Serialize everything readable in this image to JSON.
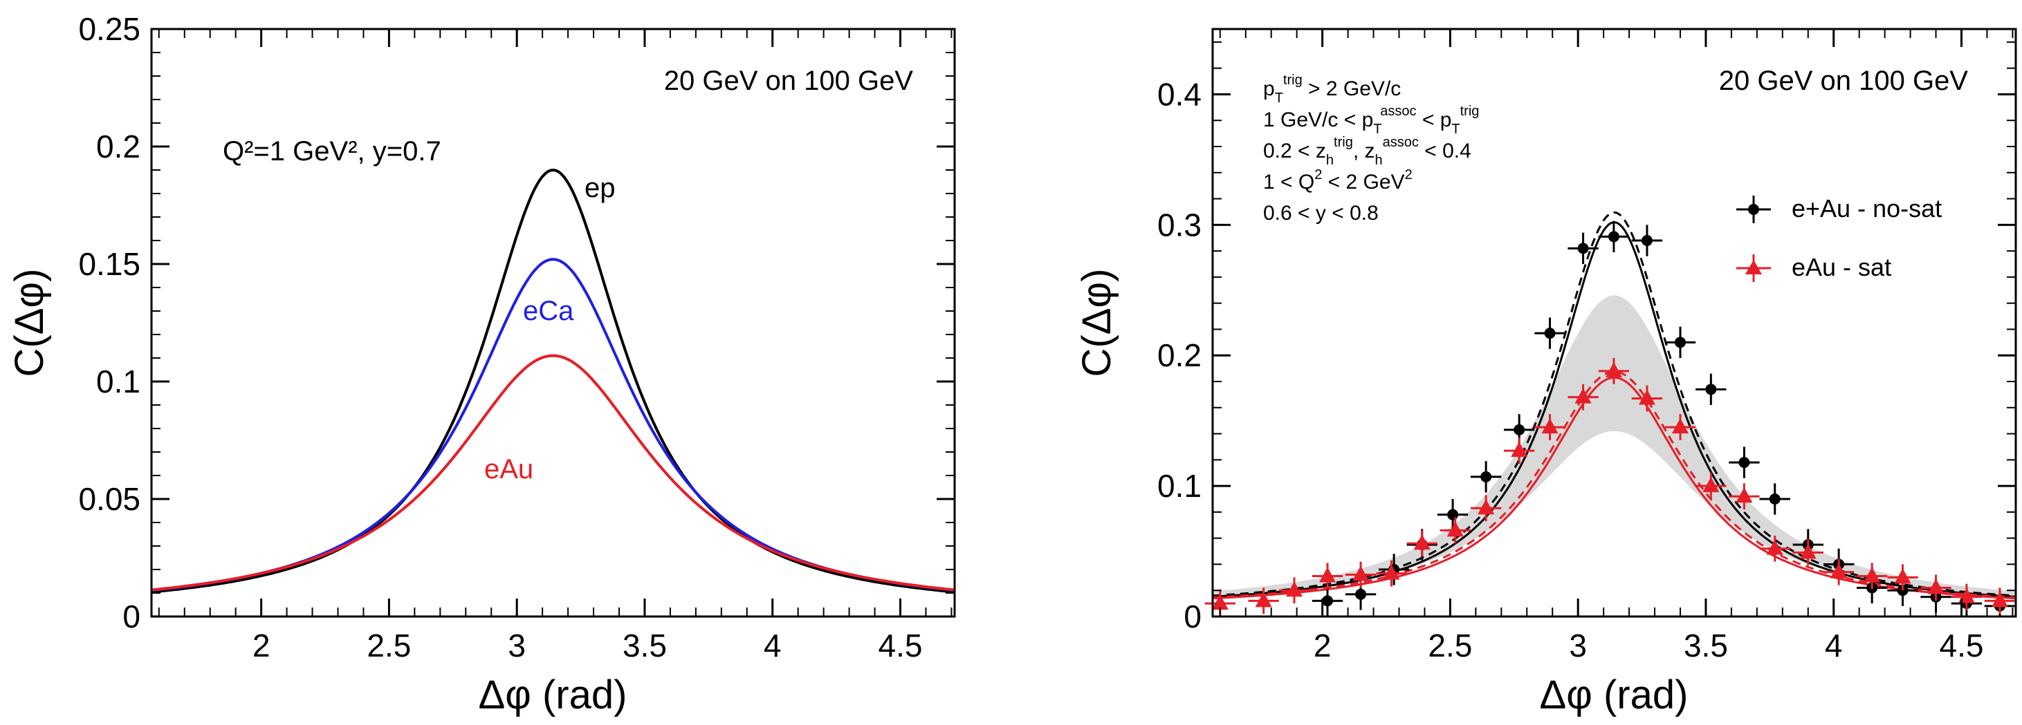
{
  "chart_data": [
    {
      "type": "line",
      "annotation": "20 GeV on 100 GeV",
      "kinematics": "Q²=1 GeV², y=0.7",
      "xlabel": "Δφ (rad)",
      "ylabel": "C(Δφ)",
      "xlim": [
        1.5708,
        4.7124
      ],
      "ylim": [
        0,
        0.25
      ],
      "xticks": [
        "2",
        "2.5",
        "3",
        "3.5",
        "4",
        "4.5"
      ],
      "yticks": [
        "0",
        "0.05",
        "0.1",
        "0.15",
        "0.2",
        "0.25"
      ],
      "grid": false,
      "legend": "none (curves labeled directly)",
      "series": [
        {
          "name": "ep",
          "color": "#000000",
          "peak": 0.19,
          "width": 0.34,
          "tail": 0.002
        },
        {
          "name": "eCa",
          "color": "#1f1fe6",
          "peak": 0.152,
          "width": 0.4,
          "tail": 0.002
        },
        {
          "name": "eAu",
          "color": "#e61e28",
          "peak": 0.111,
          "width": 0.48,
          "tail": 0.002
        }
      ]
    },
    {
      "type": "scatter",
      "annotation": "20 GeV on 100 GeV",
      "cuts": [
        "p_T^trig > 2 GeV/c",
        "1 GeV/c < p_T^assoc < p_T^trig",
        "0.2 < z_h^trig, z_h^assoc < 0.4",
        "1 < Q² < 2 GeV²",
        "0.6 < y < 0.8"
      ],
      "xlabel": "Δφ (rad)",
      "ylabel": "C(Δφ)",
      "xlim": [
        1.5708,
        4.7124
      ],
      "ylim": [
        0,
        0.45
      ],
      "xticks": [
        "2",
        "2.5",
        "3",
        "3.5",
        "4",
        "4.5"
      ],
      "yticks": [
        "0",
        "0.1",
        "0.2",
        "0.3",
        "0.4"
      ],
      "grid": false,
      "legend_position": "right",
      "band": {
        "color": "#d9d9d9",
        "center": 3.1416,
        "upper_peak": 0.246,
        "lower_peak": 0.142,
        "width": 0.38
      },
      "series": [
        {
          "name": "e+Au - no-sat",
          "color": "#000000",
          "marker": "circle",
          "x": [
            2.02,
            2.15,
            2.28,
            2.39,
            2.51,
            2.64,
            2.77,
            2.89,
            3.02,
            3.14,
            3.27,
            3.4,
            3.52,
            3.65,
            3.77,
            3.9,
            4.02,
            4.15,
            4.27,
            4.4,
            4.52,
            4.65
          ],
          "y": [
            0.012,
            0.017,
            0.036,
            0.055,
            0.078,
            0.107,
            0.143,
            0.217,
            0.282,
            0.291,
            0.288,
            0.21,
            0.174,
            0.118,
            0.09,
            0.055,
            0.04,
            0.022,
            0.02,
            0.015,
            0.01,
            0.008
          ],
          "yerr": 0.012,
          "fit_peak": 0.302,
          "fit_width": 0.28
        },
        {
          "name": "eAu - sat",
          "color": "#e61e28",
          "marker": "triangle",
          "x": [
            1.6,
            1.77,
            1.89,
            2.02,
            2.15,
            2.27,
            2.39,
            2.52,
            2.64,
            2.77,
            2.89,
            3.02,
            3.14,
            3.27,
            3.4,
            3.52,
            3.65,
            3.77,
            3.9,
            4.02,
            4.15,
            4.27,
            4.4,
            4.52,
            4.65
          ],
          "y": [
            0.01,
            0.012,
            0.02,
            0.031,
            0.032,
            0.033,
            0.056,
            0.066,
            0.083,
            0.127,
            0.145,
            0.168,
            0.188,
            0.167,
            0.145,
            0.1,
            0.092,
            0.052,
            0.049,
            0.034,
            0.031,
            0.03,
            0.022,
            0.015,
            0.012
          ],
          "yerr": 0.01,
          "fit_peak": 0.183,
          "fit_width": 0.34
        }
      ]
    }
  ]
}
